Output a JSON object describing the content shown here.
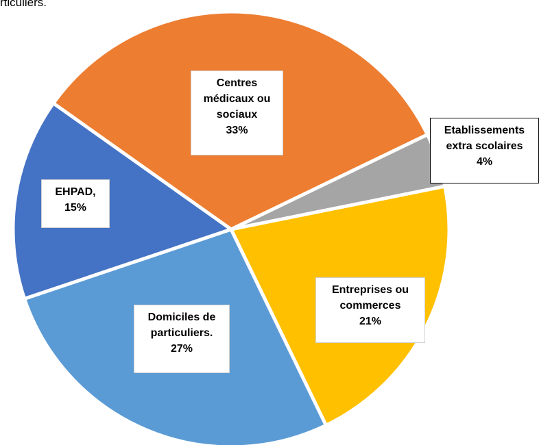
{
  "text_above": "rticuliers.",
  "chart_data": {
    "type": "pie",
    "categories": [
      "Centres médicaux ou sociaux",
      "Etablissements extra scolaires",
      "Entreprises ou commerces",
      "Domiciles de particuliers.",
      "EHPAD,"
    ],
    "values": [
      33,
      4,
      21,
      27,
      15
    ],
    "value_labels": [
      "33%",
      "4%",
      "21%",
      "27%",
      "15%"
    ],
    "colors": [
      "#ED7D31",
      "#A5A5A5",
      "#FFC000",
      "#5B9BD5",
      "#4472C4"
    ]
  }
}
